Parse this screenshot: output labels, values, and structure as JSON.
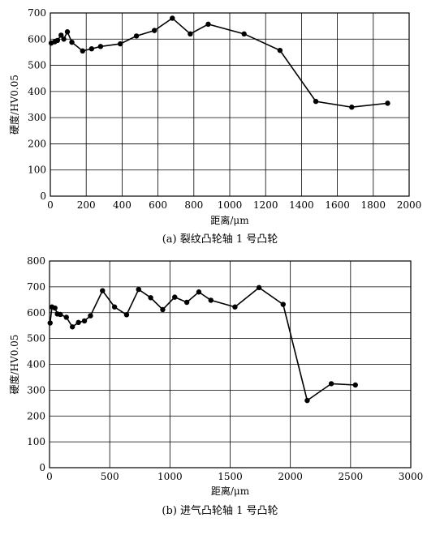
{
  "chart_data": [
    {
      "type": "line",
      "caption": "(a) 裂纹凸轮轴 1 号凸轮",
      "xlabel": "距离/μm",
      "ylabel": "硬度/HV0.05",
      "xlim": [
        0,
        2000
      ],
      "ylim": [
        0,
        700
      ],
      "xticks": [
        0,
        200,
        400,
        600,
        800,
        1000,
        1200,
        1400,
        1600,
        1800,
        2000
      ],
      "yticks": [
        0,
        100,
        200,
        300,
        400,
        500,
        600,
        700
      ],
      "grid": true,
      "x": [
        5,
        25,
        40,
        60,
        75,
        95,
        120,
        180,
        230,
        280,
        390,
        480,
        580,
        680,
        780,
        880,
        1080,
        1280,
        1480,
        1680,
        1880
      ],
      "y": [
        585,
        590,
        595,
        615,
        600,
        628,
        588,
        555,
        563,
        572,
        582,
        612,
        633,
        680,
        620,
        657,
        620,
        557,
        362,
        340,
        355
      ]
    },
    {
      "type": "line",
      "caption": "(b) 进气凸轮轴 1 号凸轮",
      "xlabel": "距离/μm",
      "ylabel": "硬度/HV0.05",
      "xlim": [
        0,
        3000
      ],
      "ylim": [
        0,
        800
      ],
      "xticks": [
        0,
        500,
        1000,
        1500,
        2000,
        2500,
        3000
      ],
      "yticks": [
        0,
        100,
        200,
        300,
        400,
        500,
        600,
        700,
        800
      ],
      "grid": true,
      "x": [
        5,
        20,
        45,
        65,
        90,
        140,
        190,
        240,
        290,
        340,
        440,
        540,
        640,
        740,
        840,
        940,
        1040,
        1140,
        1240,
        1340,
        1540,
        1740,
        1940,
        2140,
        2340,
        2540
      ],
      "y": [
        560,
        622,
        618,
        595,
        593,
        582,
        545,
        562,
        568,
        588,
        685,
        622,
        592,
        690,
        658,
        612,
        660,
        640,
        680,
        648,
        622,
        697,
        632,
        260,
        325,
        320
      ]
    }
  ]
}
